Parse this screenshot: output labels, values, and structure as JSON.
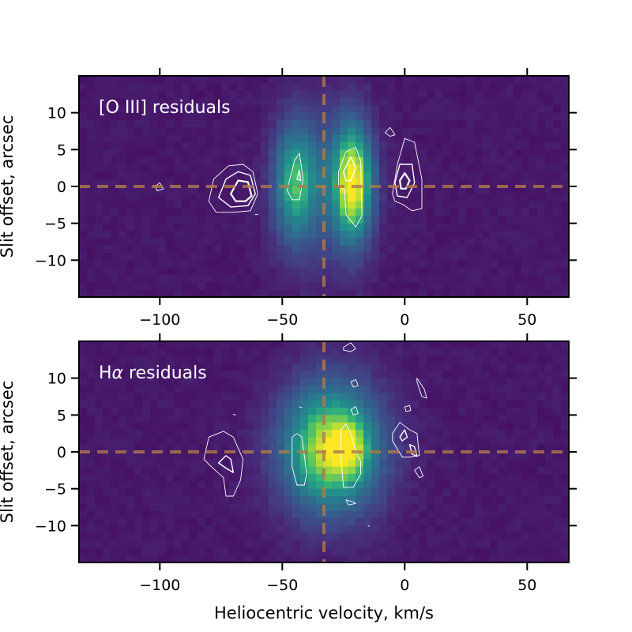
{
  "chart_data": [
    {
      "type": "heatmap",
      "title": "[O III] residuals",
      "title_html": "[O III] residuals",
      "xlabel": "",
      "ylabel": "Slit offset, arcsec",
      "xlim": [
        -133,
        67
      ],
      "ylim": [
        -15,
        15
      ],
      "xticks": [
        -100,
        -50,
        0,
        50
      ],
      "yticks": [
        10,
        5,
        0,
        -5,
        -10
      ],
      "grid": false,
      "colormap": "viridis",
      "reference_lines": {
        "vertical_x": -33,
        "horizontal_y": 0,
        "color": "#b07a4a",
        "style": "dashed"
      },
      "emission_blobs": [
        {
          "x": -45,
          "y": 0.5,
          "sx": 6.0,
          "sy": 5.5,
          "amp": 0.55
        },
        {
          "x": -21,
          "y": 0.5,
          "sx": 5.5,
          "sy": 5.5,
          "amp": 0.85
        },
        {
          "x": -33,
          "y": 0.0,
          "sx": 12.0,
          "sy": 7.5,
          "amp": 0.25
        }
      ],
      "contours": [
        {
          "level": "outer",
          "points": [
            [
              -80,
              -2
            ],
            [
              -78,
              1
            ],
            [
              -72,
              2.8
            ],
            [
              -66,
              3
            ],
            [
              -62,
              2
            ],
            [
              -60,
              -1
            ],
            [
              -63,
              -3.3
            ],
            [
              -70,
              -3.5
            ],
            [
              -77,
              -3.5
            ]
          ]
        },
        {
          "level": "mid",
          "points": [
            [
              -76,
              -1.5
            ],
            [
              -73,
              1
            ],
            [
              -68,
              2
            ],
            [
              -63,
              1.5
            ],
            [
              -61,
              -1
            ],
            [
              -64,
              -2.6
            ],
            [
              -71,
              -2.8
            ]
          ]
        },
        {
          "level": "inner",
          "points": [
            [
              -71,
              -1
            ],
            [
              -68,
              0.8
            ],
            [
              -64,
              0.6
            ],
            [
              -62.5,
              -1.3
            ],
            [
              -65,
              -2
            ],
            [
              -69,
              -2
            ]
          ]
        },
        {
          "level": "outer",
          "points": [
            [
              -102,
              0
            ],
            [
              -100,
              0.5
            ],
            [
              -98.5,
              -0.3
            ],
            [
              -101,
              -0.6
            ]
          ]
        },
        {
          "level": "outer",
          "points": [
            [
              -48,
              -0.5
            ],
            [
              -45,
              3.5
            ],
            [
              -43,
              4.5
            ],
            [
              -41.5,
              1
            ],
            [
              -43,
              -1.8
            ],
            [
              -46,
              -1.8
            ]
          ]
        },
        {
          "level": "mid",
          "points": [
            [
              -44,
              1
            ],
            [
              -43,
              2.2
            ],
            [
              -42.5,
              0.8
            ]
          ]
        },
        {
          "level": "outer",
          "points": [
            [
              -27,
              2
            ],
            [
              -24,
              4.7
            ],
            [
              -20,
              5.3
            ],
            [
              -18,
              3.5
            ],
            [
              -17.5,
              -4
            ],
            [
              -20,
              -5.5
            ],
            [
              -24,
              -3.8
            ],
            [
              -24.5,
              -0.5
            ],
            [
              -27,
              0
            ]
          ]
        },
        {
          "level": "mid",
          "points": [
            [
              -25,
              2
            ],
            [
              -22,
              4
            ],
            [
              -20,
              2.5
            ],
            [
              -22,
              0.8
            ],
            [
              -24,
              0.8
            ]
          ]
        },
        {
          "level": "outer",
          "points": [
            [
              -5,
              -1
            ],
            [
              -3,
              3
            ],
            [
              0,
              6.5
            ],
            [
              4,
              6
            ],
            [
              7,
              1
            ],
            [
              7,
              -3
            ],
            [
              3,
              -3.3
            ],
            [
              -1,
              -2.4
            ],
            [
              -4,
              -2
            ]
          ]
        },
        {
          "level": "mid",
          "points": [
            [
              -4,
              0.5
            ],
            [
              -2,
              3
            ],
            [
              3,
              3
            ],
            [
              4,
              0.5
            ],
            [
              1,
              -1.5
            ],
            [
              -3,
              -1.3
            ]
          ]
        },
        {
          "level": "inner",
          "points": [
            [
              -2,
              0.8
            ],
            [
              0,
              1.8
            ],
            [
              2,
              0.8
            ],
            [
              0.5,
              -0.3
            ],
            [
              -1.5,
              -0.3
            ]
          ]
        },
        {
          "level": "outer",
          "points": [
            [
              -8,
              7.3
            ],
            [
              -6,
              8
            ],
            [
              -4,
              7
            ],
            [
              -6,
              6.8
            ]
          ]
        },
        {
          "level": "outer",
          "points": [
            [
              -61,
              -3.8
            ],
            [
              -60,
              -3.8
            ]
          ]
        }
      ]
    },
    {
      "type": "heatmap",
      "title": "Hα residuals",
      "title_html": "H<tspan font-style='italic'>α</tspan> residuals",
      "xlabel": "Heliocentric velocity, km/s",
      "ylabel": "Slit offset, arcsec",
      "xlim": [
        -133,
        67
      ],
      "ylim": [
        -15,
        15
      ],
      "xticks": [
        -100,
        -50,
        0,
        50
      ],
      "yticks": [
        10,
        5,
        0,
        -5,
        -10
      ],
      "grid": false,
      "colormap": "viridis",
      "reference_lines": {
        "vertical_x": -33,
        "horizontal_y": 0,
        "color": "#b07a4a",
        "style": "dashed"
      },
      "emission_blobs": [
        {
          "x": -30,
          "y": 0.5,
          "sx": 14.0,
          "sy": 6.0,
          "amp": 0.9
        },
        {
          "x": -22,
          "y": 0.5,
          "sx": 5.0,
          "sy": 2.5,
          "amp": 0.25
        }
      ],
      "contours": [
        {
          "level": "outer",
          "points": [
            [
              -82,
              -1
            ],
            [
              -80,
              2
            ],
            [
              -74,
              2.8
            ],
            [
              -70,
              2
            ],
            [
              -66,
              -1
            ],
            [
              -67,
              -3.8
            ],
            [
              -70,
              -6
            ],
            [
              -73,
              -6
            ],
            [
              -74,
              -3.5
            ],
            [
              -79,
              -2
            ]
          ]
        },
        {
          "level": "mid",
          "points": [
            [
              -76,
              -1.5
            ],
            [
              -73,
              -0.5
            ],
            [
              -71,
              -1
            ],
            [
              -70,
              -2.8
            ],
            [
              -73,
              -2.2
            ]
          ]
        },
        {
          "level": "outer",
          "points": [
            [
              -46,
              2
            ],
            [
              -44,
              2.5
            ],
            [
              -42,
              2
            ],
            [
              -41,
              -0.5
            ],
            [
              -40,
              -3
            ],
            [
              -41,
              -4.5
            ],
            [
              -44,
              -4.5
            ],
            [
              -46,
              -2
            ]
          ]
        },
        {
          "level": "outer",
          "points": [
            [
              -26,
              3
            ],
            [
              -24,
              3.8
            ],
            [
              -22,
              2.5
            ],
            [
              -20,
              0
            ],
            [
              -18,
              -1.3
            ],
            [
              -18,
              -3
            ],
            [
              -21,
              -4.8
            ],
            [
              -25,
              -4.8
            ],
            [
              -26,
              -1
            ]
          ]
        },
        {
          "level": "outer",
          "points": [
            [
              -5,
              2.5
            ],
            [
              -2,
              4
            ],
            [
              2,
              3
            ],
            [
              5,
              2.5
            ],
            [
              6,
              -0.5
            ],
            [
              2,
              -0.7
            ],
            [
              -1,
              -0.7
            ],
            [
              -5,
              1.5
            ]
          ]
        },
        {
          "level": "mid",
          "points": [
            [
              -2,
              2
            ],
            [
              0,
              3
            ],
            [
              1,
              2
            ],
            [
              -1,
              1.5
            ]
          ]
        },
        {
          "level": "mid",
          "points": [
            [
              2,
              1
            ],
            [
              4,
              0.7
            ],
            [
              5,
              -0.6
            ],
            [
              3,
              -0.3
            ]
          ]
        },
        {
          "level": "outer",
          "points": [
            [
              4,
              -2.5
            ],
            [
              6,
              -2
            ],
            [
              7.5,
              -3.3
            ],
            [
              6,
              -3.5
            ]
          ]
        },
        {
          "level": "outer",
          "points": [
            [
              -25,
              14.2
            ],
            [
              -22,
              14.8
            ],
            [
              -20,
              14
            ],
            [
              -22,
              13.6
            ],
            [
              -25,
              13.8
            ]
          ]
        },
        {
          "level": "outer",
          "points": [
            [
              -22,
              9.5
            ],
            [
              -20,
              9.8
            ],
            [
              -19,
              9
            ],
            [
              -21,
              8.8
            ]
          ]
        },
        {
          "level": "outer",
          "points": [
            [
              -22,
              5.7
            ],
            [
              -20,
              6.2
            ],
            [
              -19,
              5.2
            ],
            [
              -21,
              5
            ]
          ]
        },
        {
          "level": "outer",
          "points": [
            [
              5,
              9.5
            ],
            [
              7,
              7.5
            ],
            [
              9,
              7.3
            ],
            [
              8,
              8.5
            ],
            [
              5,
              10
            ]
          ]
        },
        {
          "level": "outer",
          "points": [
            [
              0,
              6.1
            ],
            [
              2,
              6.3
            ],
            [
              2.5,
              5.6
            ],
            [
              0.5,
              5.5
            ]
          ]
        },
        {
          "level": "outer",
          "points": [
            [
              -24,
              -6.5
            ],
            [
              -21,
              -6.8
            ],
            [
              -20,
              -7
            ],
            [
              -23,
              -7.2
            ]
          ]
        },
        {
          "level": "outer",
          "points": [
            [
              -70,
              5.1
            ],
            [
              -69,
              5
            ]
          ]
        },
        {
          "level": "outer",
          "points": [
            [
              -43,
              6.1
            ],
            [
              -42,
              6
            ]
          ]
        },
        {
          "level": "outer",
          "points": [
            [
              -15,
              -10
            ],
            [
              -14.5,
              -10.1
            ]
          ]
        }
      ]
    }
  ],
  "colors": {
    "axes_frame": "#000000",
    "tick_color": "#000000",
    "contour": "#ffffff",
    "panel_title": "#ffffff"
  }
}
